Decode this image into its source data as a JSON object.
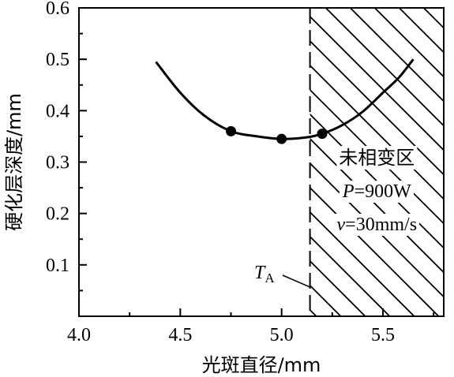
{
  "chart_data": {
    "type": "line",
    "xlabel": "光斑直径/mm",
    "ylabel": "硬化层深度/mm",
    "xlim": [
      4.0,
      5.8
    ],
    "ylim": [
      0.0,
      0.6
    ],
    "x_ticks": [
      "4.0",
      "4.5",
      "5.0",
      "5.5"
    ],
    "y_ticks": [
      "0.1",
      "0.2",
      "0.3",
      "0.4",
      "0.5",
      "0.6"
    ],
    "series": [
      {
        "style": "curve",
        "x": [
          4.38,
          4.5,
          4.62,
          4.75,
          4.88,
          5.0,
          5.12,
          5.2,
          5.3,
          5.4,
          5.5,
          5.58,
          5.65
        ],
        "y": [
          0.495,
          0.435,
          0.39,
          0.36,
          0.35,
          0.345,
          0.348,
          0.355,
          0.372,
          0.398,
          0.435,
          0.465,
          0.5
        ]
      },
      {
        "style": "points",
        "x": [
          4.75,
          5.0,
          5.2
        ],
        "y": [
          0.36,
          0.345,
          0.355
        ]
      }
    ],
    "threshold": {
      "x": 5.14,
      "label_T": "T",
      "label_sub": "A"
    },
    "region": {
      "label": "未相变区",
      "params": [
        {
          "symbol": "P",
          "text": "=900W"
        },
        {
          "symbol": "v",
          "text": "=30mm/s"
        }
      ]
    },
    "grid": false,
    "legend": "none"
  }
}
